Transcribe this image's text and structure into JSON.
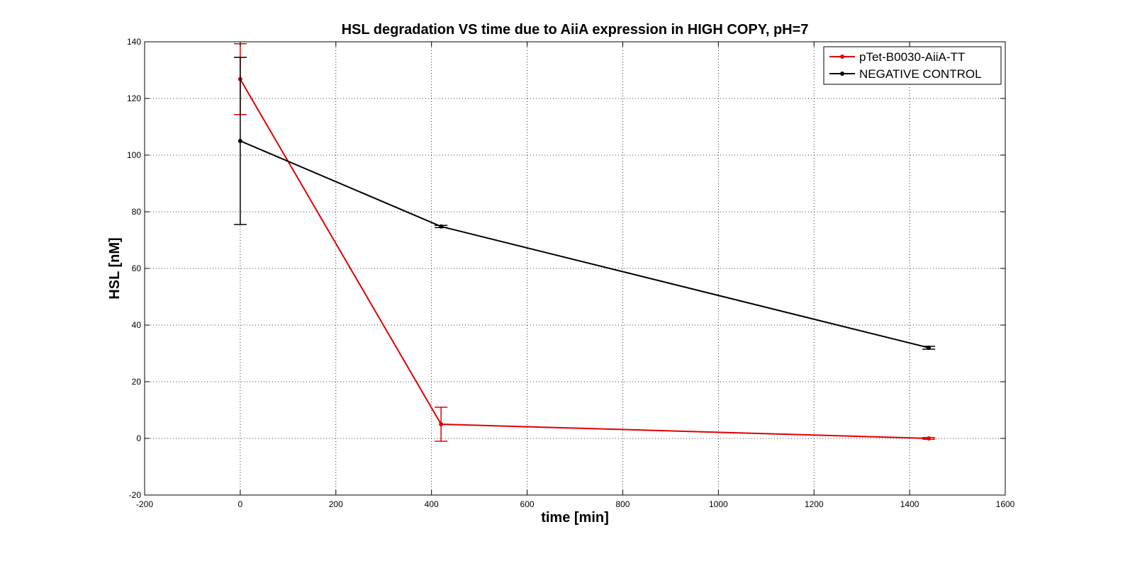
{
  "chart_data": {
    "type": "line",
    "title": "HSL degradation VS time due to AiiA expression in HIGH COPY, pH=7",
    "xlabel": "time [min]",
    "ylabel": "HSL [nM]",
    "xlim": [
      -200,
      1600
    ],
    "ylim": [
      -20,
      140
    ],
    "xticks": [
      -200,
      0,
      200,
      400,
      600,
      800,
      1000,
      1200,
      1400,
      1600
    ],
    "yticks": [
      -20,
      0,
      20,
      40,
      60,
      80,
      100,
      120,
      140
    ],
    "grid": true,
    "legend_position": "top-right",
    "series": [
      {
        "name": "pTet-B0030-AiiA-TT",
        "color": "#e00000",
        "x": [
          0,
          420,
          1440
        ],
        "y": [
          126.8,
          5,
          0
        ],
        "err": [
          12.5,
          6,
          0.3
        ]
      },
      {
        "name": "NEGATIVE CONTROL",
        "color": "#000000",
        "x": [
          0,
          420,
          1440
        ],
        "y": [
          105,
          74.8,
          32
        ],
        "err": [
          29.5,
          0.4,
          0.5
        ]
      }
    ]
  }
}
